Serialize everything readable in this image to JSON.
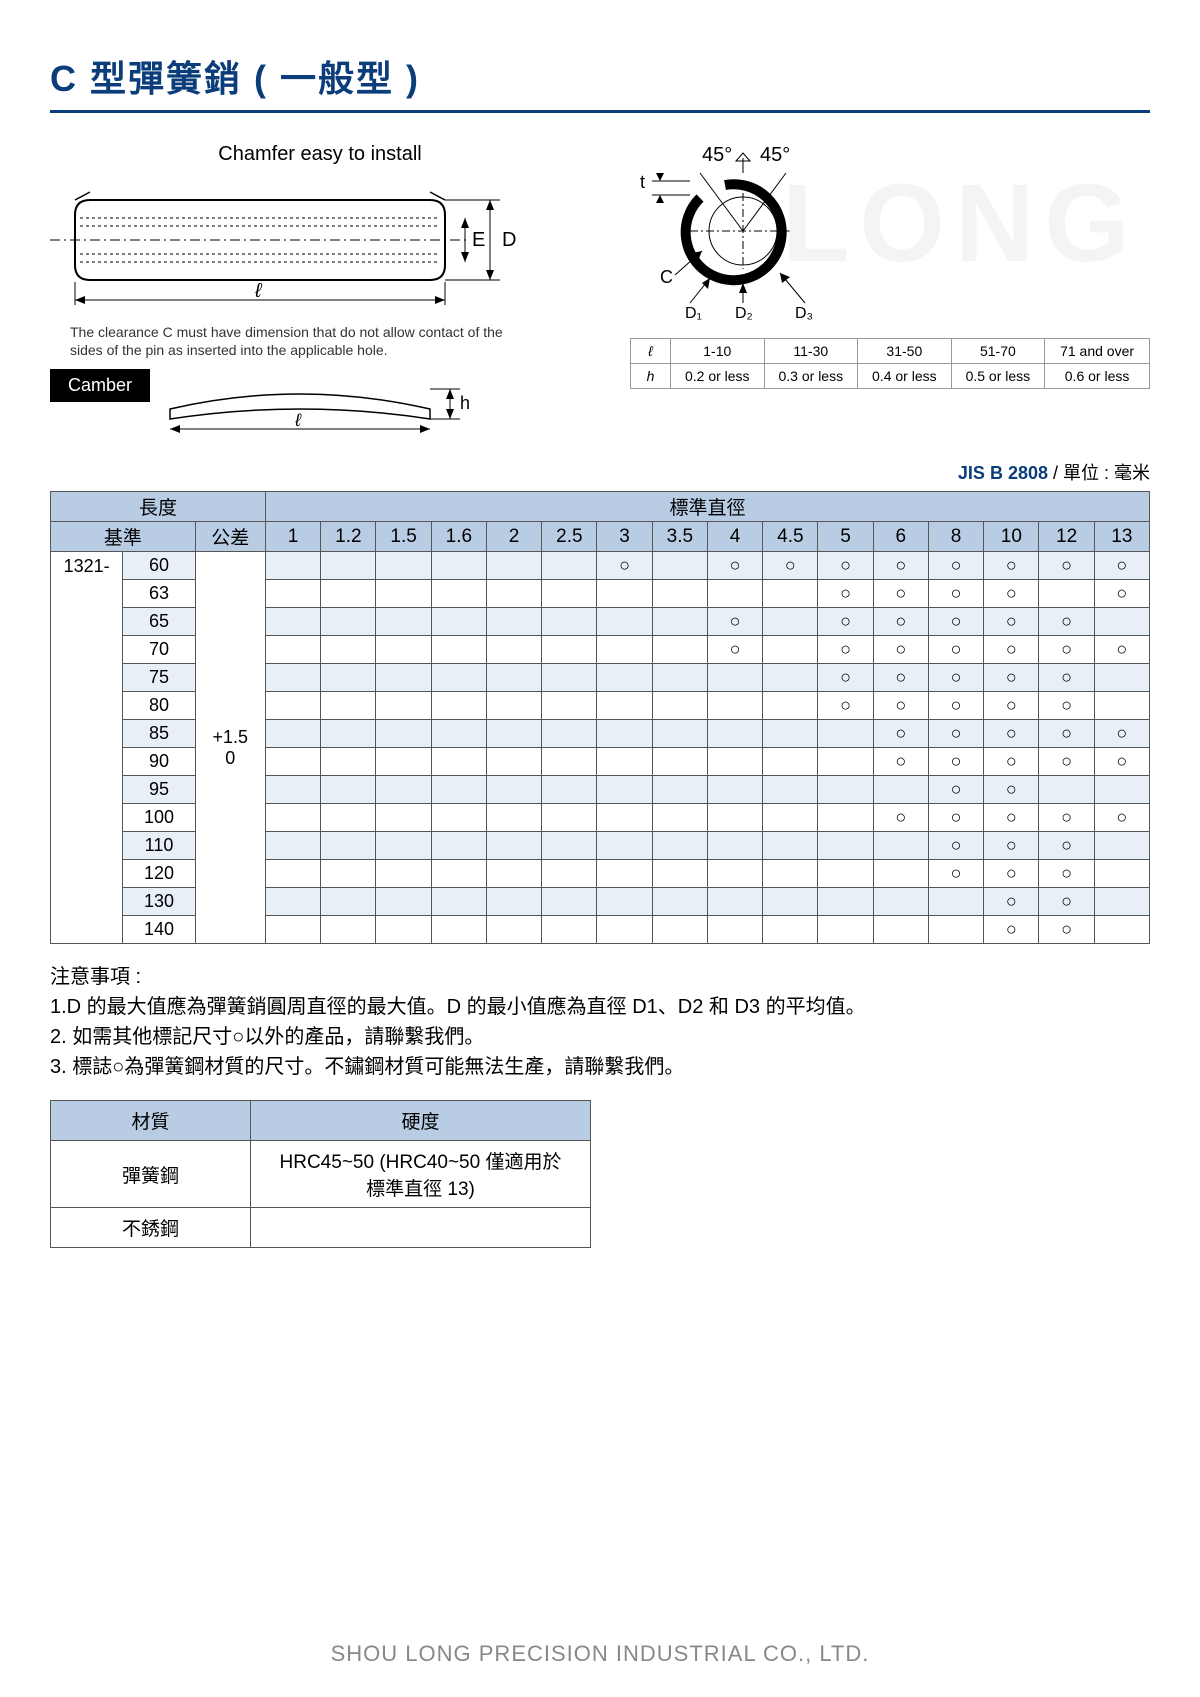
{
  "title": "C 型彈簧銷 ( 一般型 )",
  "colors": {
    "primary": "#0a3d7a",
    "header_bg": "#b8cce4",
    "row_alt": "#e8eff7",
    "border": "#555555",
    "watermark": "#f4f4f4",
    "footer": "#888888"
  },
  "diagram": {
    "chamfer_label": "Chamfer easy to install",
    "dim_E": "E",
    "dim_D": "D",
    "dim_l": "ℓ",
    "clearance_text": "The clearance C must have dimension that do not allow contact of the sides of the pin as inserted into the applicable hole.",
    "camber_label": "Camber",
    "dim_h": "h",
    "angle1": "45°",
    "angle2": "45°",
    "dim_t": "t",
    "dim_C": "C",
    "dim_D1": "D₁",
    "dim_D2": "D₂",
    "dim_D3": "D₃"
  },
  "camber_table": {
    "row1_label": "ℓ",
    "row2_label": "h",
    "cols": [
      "1-10",
      "11-30",
      "31-50",
      "51-70",
      "71 and over"
    ],
    "vals": [
      "0.2 or less",
      "0.3 or less",
      "0.4 or less",
      "0.5 or less",
      "0.6 or less"
    ]
  },
  "standard": {
    "code": "JIS B 2808",
    "unit_label": " / 單位 : 毫米"
  },
  "main_table": {
    "header1": {
      "length": "長度",
      "diameter": "標準直徑"
    },
    "header2": {
      "base": "基準",
      "tolerance": "公差"
    },
    "diameters": [
      "1",
      "1.2",
      "1.5",
      "1.6",
      "2",
      "2.5",
      "3",
      "3.5",
      "4",
      "4.5",
      "5",
      "6",
      "8",
      "10",
      "12",
      "13"
    ],
    "prefix": "1321-",
    "tolerance": "+1.5\n0",
    "rows": [
      {
        "len": "60",
        "marks": [
          0,
          0,
          0,
          0,
          0,
          0,
          1,
          0,
          1,
          1,
          1,
          1,
          1,
          1,
          1,
          1
        ]
      },
      {
        "len": "63",
        "marks": [
          0,
          0,
          0,
          0,
          0,
          0,
          0,
          0,
          0,
          0,
          1,
          1,
          1,
          1,
          0,
          1
        ]
      },
      {
        "len": "65",
        "marks": [
          0,
          0,
          0,
          0,
          0,
          0,
          0,
          0,
          1,
          0,
          1,
          1,
          1,
          1,
          1,
          0
        ]
      },
      {
        "len": "70",
        "marks": [
          0,
          0,
          0,
          0,
          0,
          0,
          0,
          0,
          1,
          0,
          1,
          1,
          1,
          1,
          1,
          1
        ]
      },
      {
        "len": "75",
        "marks": [
          0,
          0,
          0,
          0,
          0,
          0,
          0,
          0,
          0,
          0,
          1,
          1,
          1,
          1,
          1,
          0
        ]
      },
      {
        "len": "80",
        "marks": [
          0,
          0,
          0,
          0,
          0,
          0,
          0,
          0,
          0,
          0,
          1,
          1,
          1,
          1,
          1,
          0
        ]
      },
      {
        "len": "85",
        "marks": [
          0,
          0,
          0,
          0,
          0,
          0,
          0,
          0,
          0,
          0,
          0,
          1,
          1,
          1,
          1,
          1
        ]
      },
      {
        "len": "90",
        "marks": [
          0,
          0,
          0,
          0,
          0,
          0,
          0,
          0,
          0,
          0,
          0,
          1,
          1,
          1,
          1,
          1
        ]
      },
      {
        "len": "95",
        "marks": [
          0,
          0,
          0,
          0,
          0,
          0,
          0,
          0,
          0,
          0,
          0,
          0,
          1,
          1,
          0,
          0
        ]
      },
      {
        "len": "100",
        "marks": [
          0,
          0,
          0,
          0,
          0,
          0,
          0,
          0,
          0,
          0,
          0,
          1,
          1,
          1,
          1,
          1
        ]
      },
      {
        "len": "110",
        "marks": [
          0,
          0,
          0,
          0,
          0,
          0,
          0,
          0,
          0,
          0,
          0,
          0,
          1,
          1,
          1,
          0
        ]
      },
      {
        "len": "120",
        "marks": [
          0,
          0,
          0,
          0,
          0,
          0,
          0,
          0,
          0,
          0,
          0,
          0,
          1,
          1,
          1,
          0
        ]
      },
      {
        "len": "130",
        "marks": [
          0,
          0,
          0,
          0,
          0,
          0,
          0,
          0,
          0,
          0,
          0,
          0,
          0,
          1,
          1,
          0
        ]
      },
      {
        "len": "140",
        "marks": [
          0,
          0,
          0,
          0,
          0,
          0,
          0,
          0,
          0,
          0,
          0,
          0,
          0,
          1,
          1,
          0
        ]
      }
    ],
    "mark_symbol": "○"
  },
  "notes": {
    "title": "注意事項 :",
    "items": [
      "1.D 的最大值應為彈簧銷圓周直徑的最大值。D 的最小值應為直徑 D1、D2 和 D3 的平均值。",
      "2. 如需其他標記尺寸○以外的產品，請聯繫我們。",
      "3. 標誌○為彈簧鋼材質的尺寸。不鏽鋼材質可能無法生產，請聯繫我們。"
    ]
  },
  "material_table": {
    "headers": [
      "材質",
      "硬度"
    ],
    "rows": [
      [
        "彈簧鋼",
        "HRC45~50 (HRC40~50 僅適用於標準直徑 13)"
      ],
      [
        "不銹鋼",
        ""
      ]
    ]
  },
  "watermark": "LONG",
  "footer": "SHOU LONG PRECISION INDUSTRIAL CO., LTD."
}
